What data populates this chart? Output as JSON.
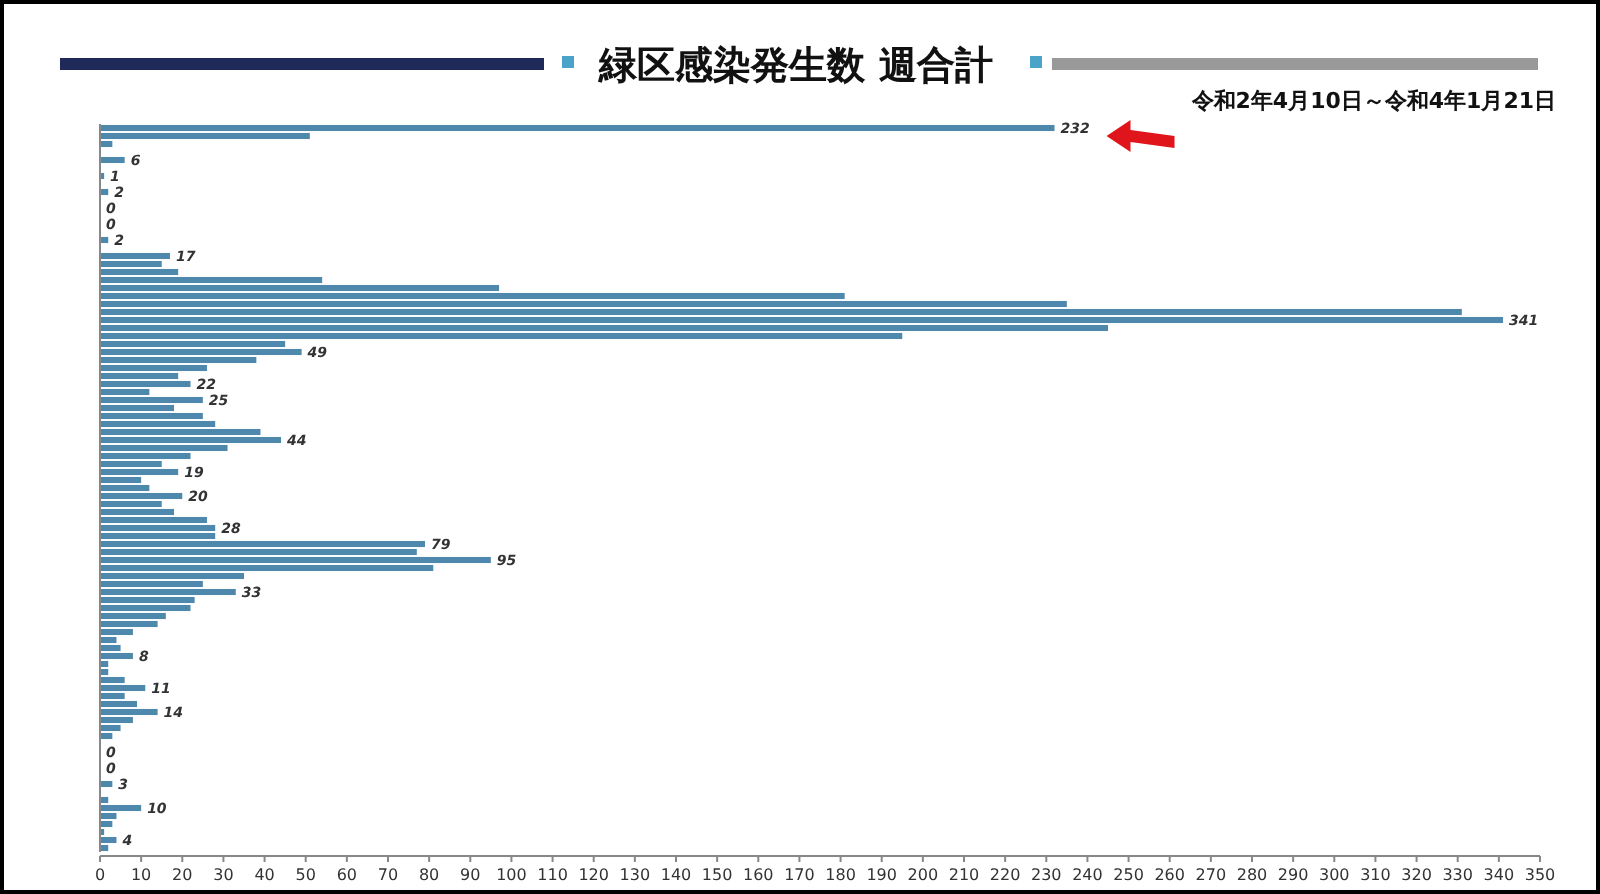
{
  "chart_data": {
    "type": "bar",
    "orientation": "horizontal",
    "title": "緑区感染発生数 週合計",
    "subtitle": "令和2年4月10日～令和4年1月21日",
    "categories": [
      null,
      null,
      null,
      null,
      null,
      null,
      null,
      null,
      null,
      null,
      null,
      null,
      null,
      null,
      null,
      null,
      null,
      null,
      null,
      null,
      null,
      null,
      null,
      null,
      null,
      null,
      null,
      null,
      null,
      null,
      null,
      null,
      null,
      null,
      null,
      null,
      null,
      null,
      null,
      null,
      null,
      null,
      null,
      null,
      null,
      null,
      null,
      null,
      null,
      null,
      null,
      null,
      null,
      null,
      null,
      null,
      null,
      null,
      null,
      null,
      null,
      null,
      null,
      null,
      null,
      null,
      null,
      null,
      null,
      null,
      null,
      null,
      null,
      null,
      null,
      null,
      null,
      null,
      null,
      null,
      null,
      null,
      null,
      null,
      null,
      null,
      null,
      null,
      null,
      null,
      null
    ],
    "values": [
      232,
      51,
      3,
      0,
      6,
      0,
      1,
      0,
      2,
      0,
      0,
      0,
      0,
      0,
      2,
      0,
      17,
      15,
      19,
      54,
      97,
      181,
      235,
      331,
      341,
      245,
      195,
      45,
      49,
      38,
      26,
      19,
      22,
      12,
      25,
      18,
      25,
      28,
      39,
      44,
      31,
      22,
      15,
      19,
      10,
      12,
      20,
      15,
      18,
      26,
      28,
      28,
      79,
      77,
      95,
      81,
      35,
      25,
      33,
      23,
      22,
      16,
      14,
      8,
      4,
      5,
      8,
      2,
      2,
      6,
      11,
      6,
      9,
      14,
      8,
      5,
      3,
      0,
      0,
      0,
      0,
      0,
      3,
      0,
      2,
      10,
      4,
      3,
      1,
      4,
      2
    ],
    "value_labels": [
      "232",
      null,
      null,
      null,
      "6",
      null,
      "1",
      null,
      "2",
      null,
      "0",
      null,
      "0",
      null,
      "2",
      null,
      "17",
      null,
      null,
      null,
      null,
      null,
      null,
      null,
      "341",
      null,
      null,
      null,
      "49",
      null,
      null,
      null,
      "22",
      null,
      "25",
      null,
      null,
      null,
      null,
      "44",
      null,
      null,
      null,
      "19",
      null,
      null,
      "20",
      null,
      null,
      null,
      "28",
      null,
      "79",
      null,
      "95",
      null,
      null,
      null,
      "33",
      null,
      null,
      null,
      null,
      null,
      null,
      null,
      "8",
      null,
      null,
      null,
      "11",
      null,
      null,
      "14",
      null,
      null,
      null,
      null,
      "0",
      null,
      "0",
      null,
      "3",
      null,
      null,
      "10",
      null,
      null,
      null,
      "4",
      null
    ],
    "color": "#4f88ad",
    "xlim": [
      0,
      350
    ],
    "xticks": [
      0,
      10,
      20,
      30,
      40,
      50,
      60,
      70,
      80,
      90,
      100,
      110,
      120,
      130,
      140,
      150,
      160,
      170,
      180,
      190,
      200,
      210,
      220,
      230,
      240,
      250,
      260,
      270,
      280,
      290,
      300,
      310,
      320,
      330,
      340,
      350
    ],
    "grid": false
  }
}
